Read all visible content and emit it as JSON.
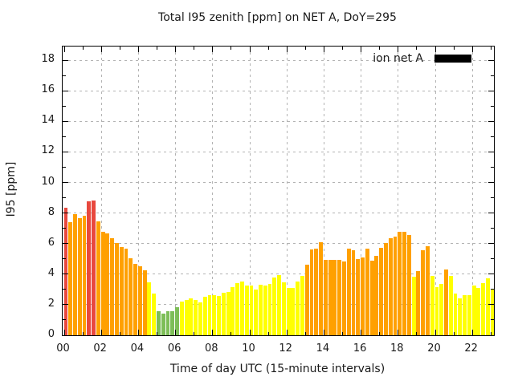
{
  "title": "Total I95 zenith [ppm] on NET A, DoY=295",
  "legend": {
    "label": "ion net A",
    "swatch_color": "#000000"
  },
  "axes": {
    "x": {
      "label": "Time of day UTC (15-minute intervals)",
      "tick_labels": [
        "00",
        "02",
        "04",
        "06",
        "08",
        "10",
        "12",
        "14",
        "16",
        "18",
        "20",
        "22"
      ]
    },
    "y": {
      "label": "I95 [ppm]",
      "tick_labels": [
        "0",
        "2",
        "4",
        "6",
        "8",
        "10",
        "12",
        "14",
        "16",
        "18"
      ]
    }
  },
  "colors": {
    "background": "#ffffff",
    "plot_border": "#000000",
    "grid": "#b3b3b3",
    "text": "#1a1a1a",
    "bar_green": "#7DBE57",
    "bar_yellow": "#FFFF00",
    "bar_orange": "#FFA000",
    "bar_red": "#E8483E"
  },
  "chart_data": {
    "type": "bar",
    "title": "Total I95 zenith [ppm] on NET A, DoY=295",
    "xlabel": "Time of day UTC (15-minute intervals)",
    "ylabel": "I95 [ppm]",
    "legend_entries": [
      "ion net A"
    ],
    "legend_position": "top-right",
    "grid": true,
    "interval_minutes": 15,
    "ylim": [
      0,
      18.9
    ],
    "xlim_hours": [
      0,
      23.2
    ],
    "x_tick_hours": [
      0,
      2,
      4,
      6,
      8,
      10,
      12,
      14,
      16,
      18,
      20,
      22
    ],
    "y_ticks": [
      0,
      2,
      4,
      6,
      8,
      10,
      12,
      14,
      16,
      18
    ],
    "color_scale": [
      {
        "max": 2,
        "color": "#7DBE57",
        "name": "green"
      },
      {
        "max": 4,
        "color": "#FFFF00",
        "name": "yellow"
      },
      {
        "max": 8,
        "color": "#FFA000",
        "name": "orange"
      },
      {
        "max": 99,
        "color": "#E8483E",
        "name": "red"
      }
    ],
    "x": [
      "00:00",
      "00:15",
      "00:30",
      "00:45",
      "01:00",
      "01:15",
      "01:30",
      "01:45",
      "02:00",
      "02:15",
      "02:30",
      "02:45",
      "03:00",
      "03:15",
      "03:30",
      "03:45",
      "04:00",
      "04:15",
      "04:30",
      "04:45",
      "05:00",
      "05:15",
      "05:30",
      "05:45",
      "06:00",
      "06:15",
      "06:30",
      "06:45",
      "07:00",
      "07:15",
      "07:30",
      "07:45",
      "08:00",
      "08:15",
      "08:30",
      "08:45",
      "09:00",
      "09:15",
      "09:30",
      "09:45",
      "10:00",
      "10:15",
      "10:30",
      "10:45",
      "11:00",
      "11:15",
      "11:30",
      "11:45",
      "12:00",
      "12:15",
      "12:30",
      "12:45",
      "13:00",
      "13:15",
      "13:30",
      "13:45",
      "14:00",
      "14:15",
      "14:30",
      "14:45",
      "15:00",
      "15:15",
      "15:30",
      "15:45",
      "16:00",
      "16:15",
      "16:30",
      "16:45",
      "17:00",
      "17:15",
      "17:30",
      "17:45",
      "18:00",
      "18:15",
      "18:30",
      "18:45",
      "19:00",
      "19:15",
      "19:30",
      "19:45",
      "20:00",
      "20:15",
      "20:30",
      "20:45",
      "21:00",
      "21:15",
      "21:30",
      "21:45",
      "22:00",
      "22:15",
      "22:30",
      "22:45",
      "23:00"
    ],
    "values": [
      8.35,
      7.4,
      7.95,
      7.65,
      7.8,
      8.75,
      8.8,
      7.45,
      6.75,
      6.65,
      6.35,
      6.05,
      5.8,
      5.65,
      5.05,
      4.65,
      4.5,
      4.25,
      3.45,
      2.75,
      1.55,
      1.4,
      1.55,
      1.55,
      1.85,
      2.2,
      2.3,
      2.4,
      2.3,
      2.15,
      2.5,
      2.65,
      2.6,
      2.55,
      2.8,
      2.85,
      3.15,
      3.4,
      3.5,
      3.25,
      3.25,
      3.0,
      3.3,
      3.25,
      3.35,
      3.8,
      3.95,
      3.45,
      3.1,
      3.1,
      3.5,
      3.9,
      4.6,
      5.6,
      5.65,
      6.1,
      4.95,
      4.95,
      4.95,
      4.95,
      4.85,
      5.65,
      5.55,
      5.0,
      5.1,
      5.65,
      4.9,
      5.2,
      5.7,
      6.05,
      6.35,
      6.45,
      6.75,
      6.75,
      6.55,
      3.85,
      4.2,
      5.55,
      5.85,
      3.9,
      3.15,
      3.35,
      4.3,
      3.9,
      2.75,
      2.4,
      2.6,
      2.6,
      3.25,
      3.1,
      3.4,
      3.75,
      3.0
    ]
  }
}
